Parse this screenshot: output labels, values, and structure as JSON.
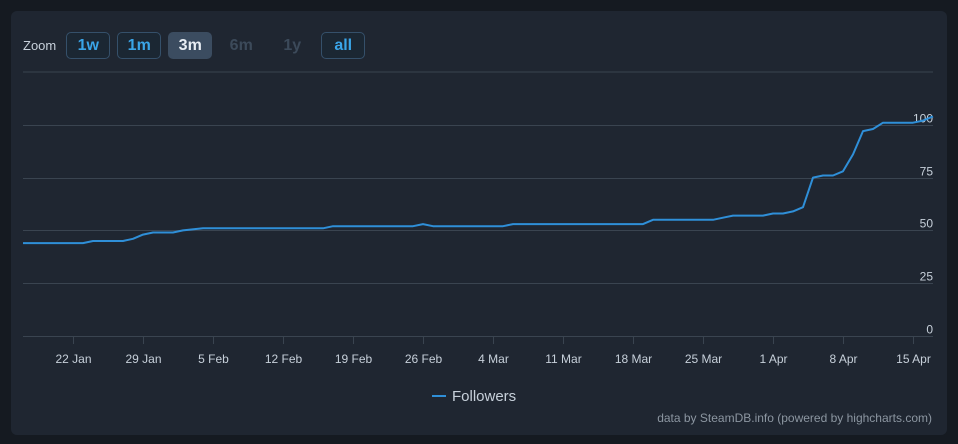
{
  "zoom": {
    "label": "Zoom",
    "buttons": [
      {
        "label": "1w",
        "state": "enabled"
      },
      {
        "label": "1m",
        "state": "enabled"
      },
      {
        "label": "3m",
        "state": "active"
      },
      {
        "label": "6m",
        "state": "disabled"
      },
      {
        "label": "1y",
        "state": "disabled"
      },
      {
        "label": "all",
        "state": "enabled"
      }
    ]
  },
  "credit": "data by SteamDB.info (powered by highcharts.com)",
  "colors": {
    "line": "#2f8fd8",
    "grid": "#3a4450",
    "text": "#c7d0da",
    "panel": "#1f2631",
    "background": "#151a21"
  },
  "chart_data": {
    "type": "line",
    "title": "",
    "xlabel": "",
    "ylabel": "",
    "ylim": [
      0,
      125
    ],
    "yticks": [
      0,
      25,
      50,
      75,
      100
    ],
    "xlim": [
      "2024-01-17",
      "2024-04-17"
    ],
    "xticks": [
      {
        "date": "2024-01-22",
        "label": "22 Jan"
      },
      {
        "date": "2024-01-29",
        "label": "29 Jan"
      },
      {
        "date": "2024-02-05",
        "label": "5 Feb"
      },
      {
        "date": "2024-02-12",
        "label": "12 Feb"
      },
      {
        "date": "2024-02-19",
        "label": "19 Feb"
      },
      {
        "date": "2024-02-26",
        "label": "26 Feb"
      },
      {
        "date": "2024-03-04",
        "label": "4 Mar"
      },
      {
        "date": "2024-03-11",
        "label": "11 Mar"
      },
      {
        "date": "2024-03-18",
        "label": "18 Mar"
      },
      {
        "date": "2024-03-25",
        "label": "25 Mar"
      },
      {
        "date": "2024-04-01",
        "label": "1 Apr"
      },
      {
        "date": "2024-04-08",
        "label": "8 Apr"
      },
      {
        "date": "2024-04-15",
        "label": "15 Apr"
      }
    ],
    "grid": true,
    "legend": "bottom-center",
    "series": [
      {
        "name": "Followers",
        "points": [
          [
            "2024-01-17",
            44
          ],
          [
            "2024-01-23",
            44
          ],
          [
            "2024-01-24",
            45
          ],
          [
            "2024-01-27",
            45
          ],
          [
            "2024-01-28",
            46
          ],
          [
            "2024-01-29",
            48
          ],
          [
            "2024-01-30",
            49
          ],
          [
            "2024-02-01",
            49
          ],
          [
            "2024-02-02",
            50
          ],
          [
            "2024-02-04",
            51
          ],
          [
            "2024-02-16",
            51
          ],
          [
            "2024-02-17",
            52
          ],
          [
            "2024-02-25",
            52
          ],
          [
            "2024-02-26",
            53
          ],
          [
            "2024-02-27",
            52
          ],
          [
            "2024-03-05",
            52
          ],
          [
            "2024-03-06",
            53
          ],
          [
            "2024-03-19",
            53
          ],
          [
            "2024-03-20",
            55
          ],
          [
            "2024-03-26",
            55
          ],
          [
            "2024-03-27",
            56
          ],
          [
            "2024-03-28",
            57
          ],
          [
            "2024-03-31",
            57
          ],
          [
            "2024-04-01",
            58
          ],
          [
            "2024-04-02",
            58
          ],
          [
            "2024-04-03",
            59
          ],
          [
            "2024-04-04",
            61
          ],
          [
            "2024-04-05",
            75
          ],
          [
            "2024-04-06",
            76
          ],
          [
            "2024-04-07",
            76
          ],
          [
            "2024-04-08",
            78
          ],
          [
            "2024-04-09",
            86
          ],
          [
            "2024-04-10",
            97
          ],
          [
            "2024-04-11",
            98
          ],
          [
            "2024-04-12",
            101
          ],
          [
            "2024-04-14",
            101
          ],
          [
            "2024-04-15",
            101
          ],
          [
            "2024-04-16",
            102
          ],
          [
            "2024-04-17",
            104
          ]
        ]
      }
    ]
  }
}
